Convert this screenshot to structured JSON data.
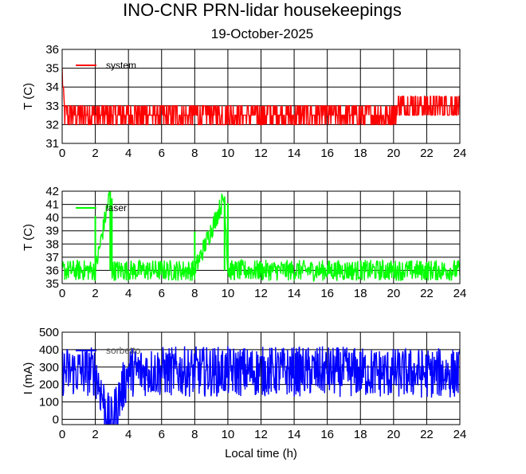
{
  "title": "INO-CNR PRN-lidar housekeepings",
  "subtitle": "19-October-2025",
  "chart_data": [
    {
      "type": "line",
      "xlabel": "",
      "ylabel": "T (C)",
      "xlim": [
        0,
        24
      ],
      "ylim": [
        31,
        36
      ],
      "xticks": [
        0,
        2,
        4,
        6,
        8,
        10,
        12,
        14,
        16,
        18,
        20,
        22,
        24
      ],
      "yticks": [
        31,
        32,
        33,
        34,
        35,
        36
      ],
      "grid": true,
      "legend_position": "top-left",
      "series": [
        {
          "name": "system",
          "color": "#ff0000",
          "x": [
            0.0,
            0.04,
            0.08,
            0.15,
            0.5,
            1.0,
            2.0,
            3.0,
            4.0,
            5.0,
            6.0,
            7.0,
            8.0,
            9.0,
            10.0,
            11.0,
            12.0,
            13.0,
            14.0,
            15.0,
            16.0,
            17.0,
            18.0,
            19.0,
            20.0,
            20.6,
            21.0,
            22.0,
            23.0,
            24.0
          ],
          "values": [
            35.2,
            34.2,
            33.5,
            32.5,
            32.3,
            32.3,
            32.4,
            32.4,
            32.4,
            32.5,
            32.5,
            32.5,
            32.5,
            32.6,
            32.6,
            32.6,
            32.6,
            32.6,
            32.6,
            32.6,
            32.6,
            32.6,
            32.6,
            32.6,
            32.6,
            33.1,
            33.1,
            33.1,
            33.1,
            33.0
          ],
          "spread": 0.5
        }
      ]
    },
    {
      "type": "line",
      "xlabel": "",
      "ylabel": "T (C)",
      "xlim": [
        0,
        24
      ],
      "ylim": [
        35,
        42
      ],
      "xticks": [
        0,
        2,
        4,
        6,
        8,
        10,
        12,
        14,
        16,
        18,
        20,
        22,
        24
      ],
      "yticks": [
        35,
        36,
        37,
        38,
        39,
        40,
        41,
        42
      ],
      "grid": true,
      "legend_position": "top-left",
      "series": [
        {
          "name": "laser",
          "color": "#00ff00",
          "x": [
            0,
            2,
            2.9,
            3,
            4,
            6,
            8,
            9.8,
            10,
            12,
            14,
            16,
            18,
            20,
            22,
            24
          ],
          "values": [
            36.0,
            36.0,
            42.0,
            36.0,
            36.0,
            36.0,
            36.0,
            41.6,
            36.0,
            36.0,
            36.0,
            36.0,
            36.0,
            36.0,
            36.0,
            36.0
          ],
          "spread": 0.8
        }
      ]
    },
    {
      "type": "line",
      "xlabel": "Local time (h)",
      "ylabel": "I (mA)",
      "xlim": [
        0,
        24
      ],
      "ylim": [
        -30,
        500
      ],
      "xticks": [
        0,
        2,
        4,
        6,
        8,
        10,
        12,
        14,
        16,
        18,
        20,
        22,
        24
      ],
      "yticks": [
        0,
        100,
        200,
        300,
        400,
        500
      ],
      "grid": true,
      "legend_position": "top-left",
      "series": [
        {
          "name": "sorbetto",
          "color": "#0000ff",
          "x": [
            0,
            2,
            2.9,
            4,
            6,
            8,
            10,
            12,
            14,
            16,
            18,
            20,
            22,
            24
          ],
          "values": [
            275,
            275,
            -30,
            275,
            275,
            275,
            275,
            275,
            275,
            275,
            270,
            265,
            265,
            265
          ],
          "spread": 145
        }
      ]
    }
  ]
}
